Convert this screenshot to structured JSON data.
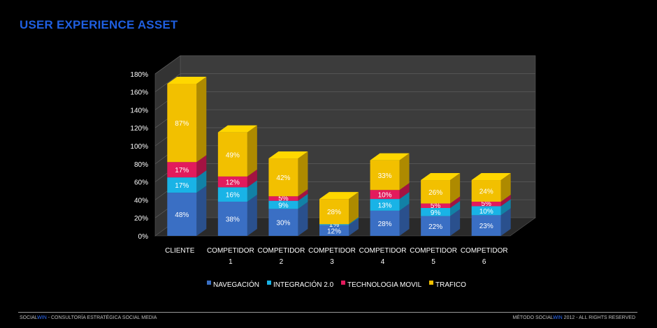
{
  "title": "USER EXPERIENCE ASSET",
  "footer": {
    "left_brand_a": "SOCIAL",
    "left_brand_b": "WIN",
    "left_text": " - CONSULTORÍA ESTRATÉGICA SOCIAL MEDIA",
    "right_prefix": "MÉTODO ",
    "right_brand_a": "SOCIAL",
    "right_brand_b": "WIN",
    "right_suffix": " 2012 - ALL RIGHTS RESERVED"
  },
  "colors": {
    "navegacion": "#3a6fc4",
    "integracion": "#19b3e6",
    "movil": "#e31a5c",
    "trafico": "#f2c000",
    "wall": "#3c3c3c",
    "floor": "#2a2a2a",
    "text": "#ffffff"
  },
  "chart_data": {
    "type": "bar",
    "stacked": true,
    "categories": [
      [
        "CLIENTE"
      ],
      [
        "COMPETIDOR",
        "1"
      ],
      [
        "COMPETIDOR",
        "2"
      ],
      [
        "COMPETIDOR",
        "3"
      ],
      [
        "COMPETIDOR",
        "4"
      ],
      [
        "COMPETIDOR",
        "5"
      ],
      [
        "COMPETIDOR",
        "6"
      ]
    ],
    "series": [
      {
        "name": "NAVEGACIÓN",
        "color_key": "navegacion",
        "values": [
          48,
          38,
          30,
          12,
          28,
          22,
          23
        ],
        "labels": [
          "48%",
          "38%",
          "30%",
          "12%",
          "28%",
          "22%",
          "23%"
        ]
      },
      {
        "name": "INTEGRACIÓN 2.0",
        "color_key": "integracion",
        "values": [
          17,
          16,
          9,
          1,
          13,
          9,
          10
        ],
        "labels": [
          "17%",
          "16%",
          "9%",
          "1%",
          "13%",
          "9%",
          "10%"
        ]
      },
      {
        "name": "TECHNOLOGIA MOVIL",
        "color_key": "movil",
        "values": [
          17,
          12,
          5,
          0,
          10,
          5,
          5
        ],
        "labels": [
          "17%",
          "12%",
          "5%",
          "",
          "10%",
          "5%",
          "5%"
        ]
      },
      {
        "name": "TRAFICO",
        "color_key": "trafico",
        "values": [
          87,
          49,
          42,
          28,
          33,
          26,
          24
        ],
        "labels": [
          "87%",
          "49%",
          "42%",
          "28%",
          "33%",
          "26%",
          "24%"
        ]
      }
    ],
    "y_ticks": [
      "0%",
      "20%",
      "40%",
      "60%",
      "80%",
      "100%",
      "120%",
      "140%",
      "160%",
      "180%"
    ],
    "ylim": [
      0,
      180
    ],
    "legend_position": "bottom",
    "grid": true,
    "style": "3d-column"
  }
}
